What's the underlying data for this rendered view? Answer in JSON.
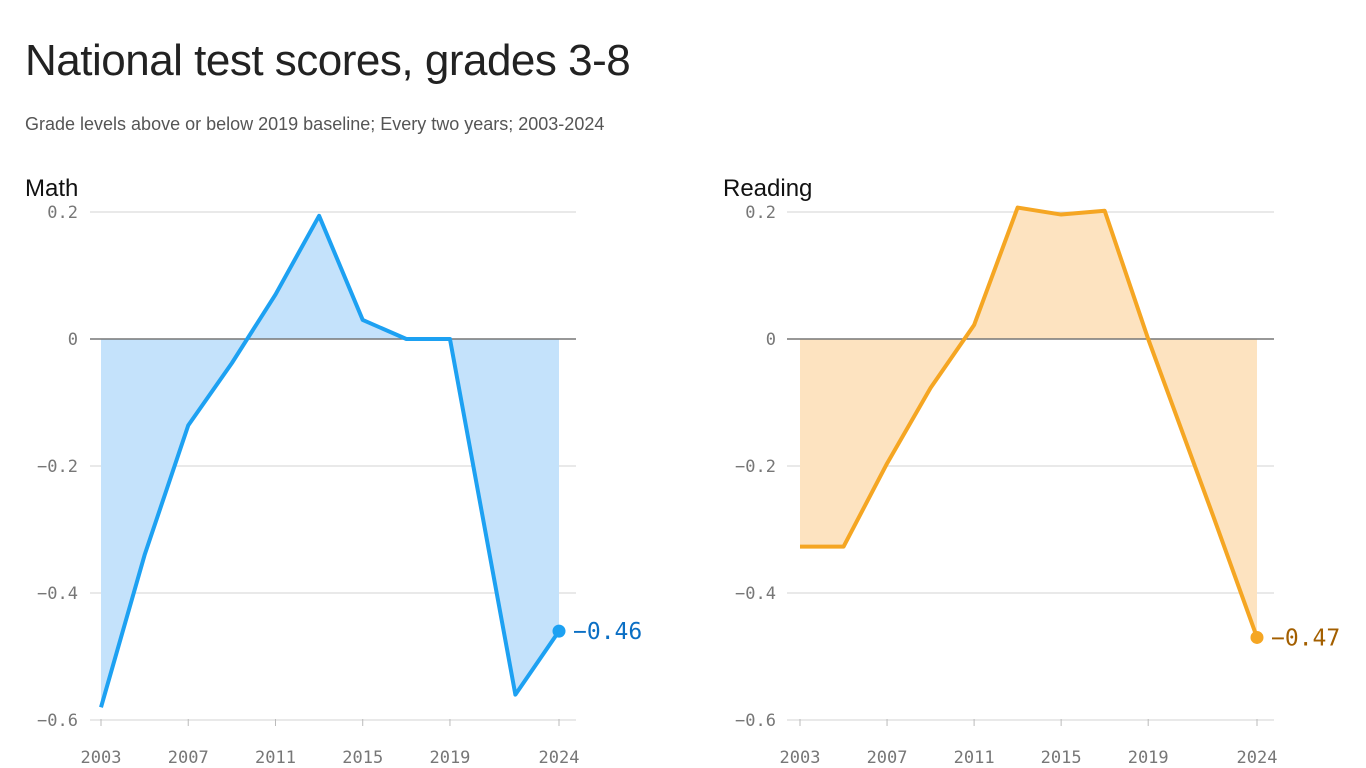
{
  "title": "National test scores, grades 3-8",
  "subtitle": "Grade levels above or below 2019 baseline; Every two years; 2003-2024",
  "chart_data": [
    {
      "type": "area",
      "title": "Math",
      "color": "#1da1f2",
      "fill": "#c4e2fb",
      "label_color": "#0b6fc4",
      "x": [
        2003,
        2005,
        2007,
        2009,
        2011,
        2013,
        2015,
        2017,
        2019,
        2022,
        2024
      ],
      "values": [
        -0.58,
        -0.34,
        -0.136,
        -0.038,
        0.07,
        0.194,
        0.03,
        0.0,
        0.0,
        -0.56,
        -0.46
      ],
      "end_label": "-0.46",
      "xticks": [
        2003,
        2007,
        2011,
        2015,
        2019,
        2024
      ],
      "yticks": [
        0.2,
        0,
        -0.2,
        -0.4,
        -0.6
      ],
      "ytick_labels": [
        "0.2",
        "0",
        "−0.2",
        "−0.4",
        "−0.6"
      ],
      "ylim": [
        -0.62,
        0.2
      ],
      "xlim": [
        2003,
        2024
      ],
      "grid": true
    },
    {
      "type": "area",
      "title": "Reading",
      "color": "#f5a623",
      "fill": "#fde3c0",
      "label_color": "#a35f00",
      "x": [
        2003,
        2005,
        2007,
        2009,
        2011,
        2013,
        2015,
        2017,
        2019,
        2022,
        2024
      ],
      "values": [
        -0.327,
        -0.327,
        -0.196,
        -0.077,
        0.022,
        0.207,
        0.196,
        0.202,
        0.0,
        -0.28,
        -0.47
      ],
      "end_label": "-0.47",
      "xticks": [
        2003,
        2007,
        2011,
        2015,
        2019,
        2024
      ],
      "yticks": [
        0.2,
        0,
        -0.2,
        -0.4,
        -0.6
      ],
      "ytick_labels": [
        "0.2",
        "0",
        "−0.2",
        "−0.4",
        "−0.6"
      ],
      "ylim": [
        -0.62,
        0.2
      ],
      "xlim": [
        2003,
        2024
      ],
      "grid": true
    }
  ]
}
